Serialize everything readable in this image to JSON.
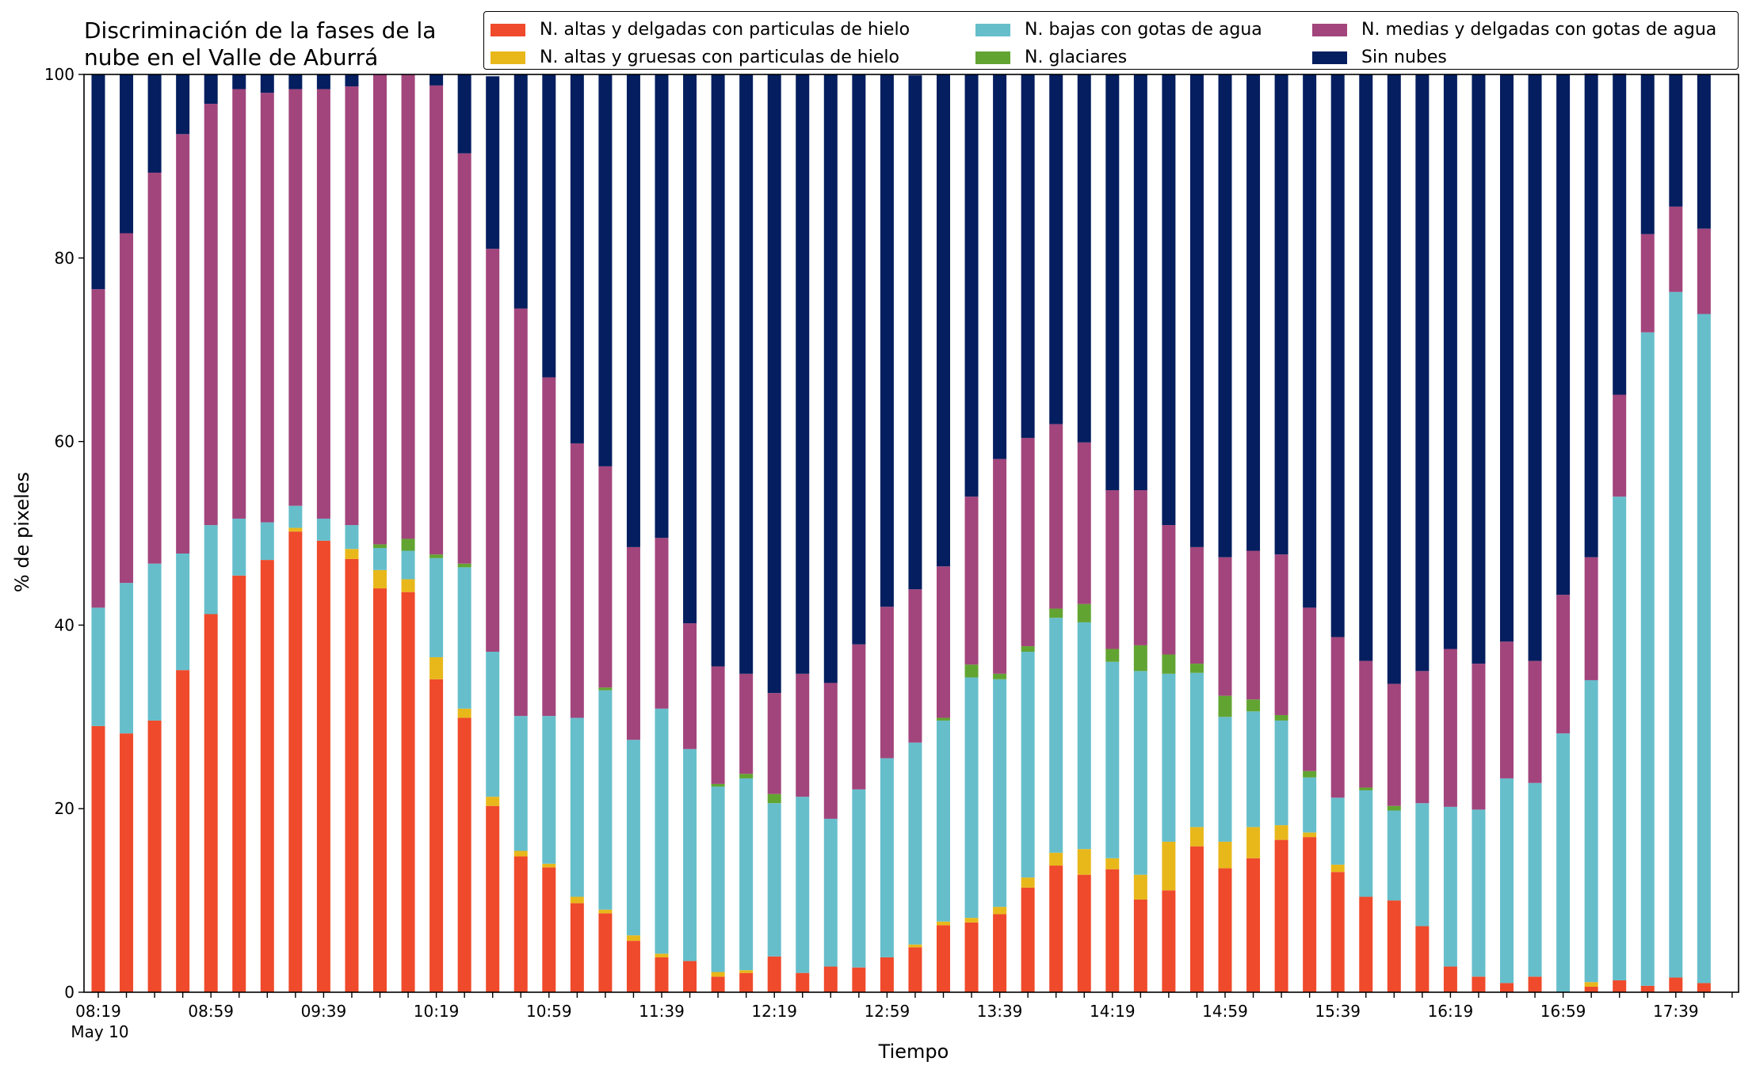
{
  "chart_data": {
    "type": "bar",
    "stacked": true,
    "title": "Discriminación de la fases de la\nnube en el Valle de Aburrá",
    "xlabel": "Tiempo",
    "ylabel": "% de pixeles",
    "ylim": [
      0,
      100
    ],
    "yticks": [
      "0",
      "20",
      "40",
      "60",
      "80",
      "100"
    ],
    "xtick_labels": [
      "08:19",
      "08:59",
      "09:39",
      "10:19",
      "10:59",
      "11:39",
      "12:19",
      "12:59",
      "13:39",
      "14:19",
      "14:59",
      "15:39",
      "16:19",
      "16:59",
      "17:39"
    ],
    "x_date_label": "May 10",
    "legend_placement": "top-right",
    "grid": false,
    "series": [
      {
        "name": "N. altas y delgadas con particulas de hielo",
        "color": "#EF4A2B",
        "values": [
          29,
          28.2,
          29.6,
          35.1,
          41.2,
          45.4,
          47.1,
          50.2,
          49.2,
          47.2,
          44,
          43.6,
          34.1,
          29.9,
          20.3,
          14.8,
          13.6,
          9.7,
          8.6,
          5.6,
          3.8,
          3.4,
          1.7,
          2.1,
          3.9,
          2.1,
          2.8,
          2.7,
          3.8,
          4.9,
          7.3,
          7.6,
          8.5,
          11.4,
          13.8,
          12.8,
          13.4,
          10.1,
          11.1,
          15.9,
          13.5,
          14.6,
          16.6,
          16.9,
          13.1,
          10.4,
          10,
          7.2,
          2.8,
          1.7,
          1,
          1.7,
          0,
          0.6,
          1.3,
          0.7,
          1.6,
          1
        ]
      },
      {
        "name": "N. altas y gruesas con particulas de hielo",
        "color": "#E8B81B",
        "values": [
          0,
          0,
          0,
          0,
          0,
          0,
          0,
          0.4,
          0,
          1.1,
          2,
          1.4,
          2.4,
          1,
          1,
          0.6,
          0.4,
          0.7,
          0.4,
          0.6,
          0.4,
          0,
          0.5,
          0.3,
          0,
          0,
          0,
          0,
          0,
          0.3,
          0.4,
          0.5,
          0.8,
          1.1,
          1.4,
          2.8,
          1.2,
          2.7,
          5.3,
          2.1,
          2.9,
          3.4,
          1.6,
          0.5,
          0.8,
          0,
          0,
          0,
          0,
          0,
          0,
          0,
          0,
          0.5,
          0,
          0,
          0,
          0
        ]
      },
      {
        "name": "N. bajas con gotas de agua",
        "color": "#66BECB",
        "values": [
          12.9,
          16.4,
          17.1,
          12.7,
          9.7,
          6.2,
          4.1,
          2.4,
          2.4,
          2.6,
          2.4,
          3.1,
          10.8,
          15.4,
          15.8,
          14.7,
          16.1,
          19.5,
          23.9,
          21.3,
          26.7,
          23.1,
          20.2,
          20.9,
          16.7,
          19.2,
          16.1,
          19.4,
          21.7,
          22,
          21.9,
          26.2,
          24.8,
          24.6,
          25.6,
          24.7,
          21.4,
          22.2,
          18.3,
          16.8,
          13.6,
          12.6,
          11.4,
          6,
          7.3,
          11.6,
          9.8,
          13.4,
          17.4,
          18.2,
          22.3,
          21.1,
          28.2,
          32.9,
          52.7,
          71.2,
          74.7,
          72.9
        ]
      },
      {
        "name": "N. glaciares",
        "color": "#62A432",
        "values": [
          0,
          0,
          0,
          0,
          0,
          0,
          0,
          0,
          0,
          0,
          0.4,
          1.3,
          0.4,
          0.4,
          0,
          0,
          0,
          0,
          0.3,
          0,
          0,
          0,
          0.3,
          0.5,
          1,
          0,
          0,
          0,
          0,
          0,
          0.3,
          1.4,
          0.6,
          0.6,
          1,
          2,
          1.4,
          2.8,
          2.1,
          1,
          2.3,
          1.3,
          0.6,
          0.7,
          0,
          0.3,
          0.5,
          0,
          0,
          0,
          0,
          0,
          0,
          0,
          0,
          0,
          0,
          0
        ]
      },
      {
        "name": "N. medias y delgadas con gotas de agua",
        "color": "#A2457C",
        "values": [
          34.7,
          38.1,
          42.6,
          45.7,
          45.9,
          46.8,
          46.8,
          45.4,
          46.8,
          47.8,
          51.2,
          50.6,
          51.1,
          44.7,
          43.9,
          44.4,
          36.9,
          29.9,
          24.1,
          21,
          18.6,
          13.7,
          12.8,
          10.9,
          11,
          13.4,
          14.8,
          15.8,
          16.5,
          16.7,
          16.5,
          18.3,
          23.4,
          22.7,
          20.1,
          17.6,
          17.3,
          16.9,
          14.1,
          12.7,
          15.1,
          16.2,
          17.5,
          17.8,
          17.5,
          13.8,
          13.3,
          14.4,
          17.2,
          15.9,
          14.9,
          13.3,
          15.1,
          13.4,
          11.1,
          10.7,
          9.3,
          9.3
        ]
      },
      {
        "name": "Sin nubes",
        "color": "#041E5F",
        "values": [
          23.4,
          17.3,
          10.7,
          6.5,
          3.2,
          1.6,
          2,
          1.6,
          1.6,
          1.3,
          0,
          0,
          1.2,
          8.6,
          18.8,
          25.5,
          33,
          40.2,
          42.7,
          51.5,
          50.5,
          59.8,
          64.5,
          65.3,
          67.4,
          65.3,
          66.3,
          62.1,
          58,
          56,
          53.6,
          46,
          41.9,
          39.6,
          38.1,
          40.1,
          45.3,
          45.3,
          49.1,
          51.5,
          52.6,
          51.9,
          52.3,
          58.1,
          61.3,
          63.9,
          66.4,
          65,
          62.6,
          64.2,
          61.8,
          63.9,
          56.7,
          52.7,
          35,
          17.4,
          14.4,
          16.8
        ]
      }
    ]
  }
}
